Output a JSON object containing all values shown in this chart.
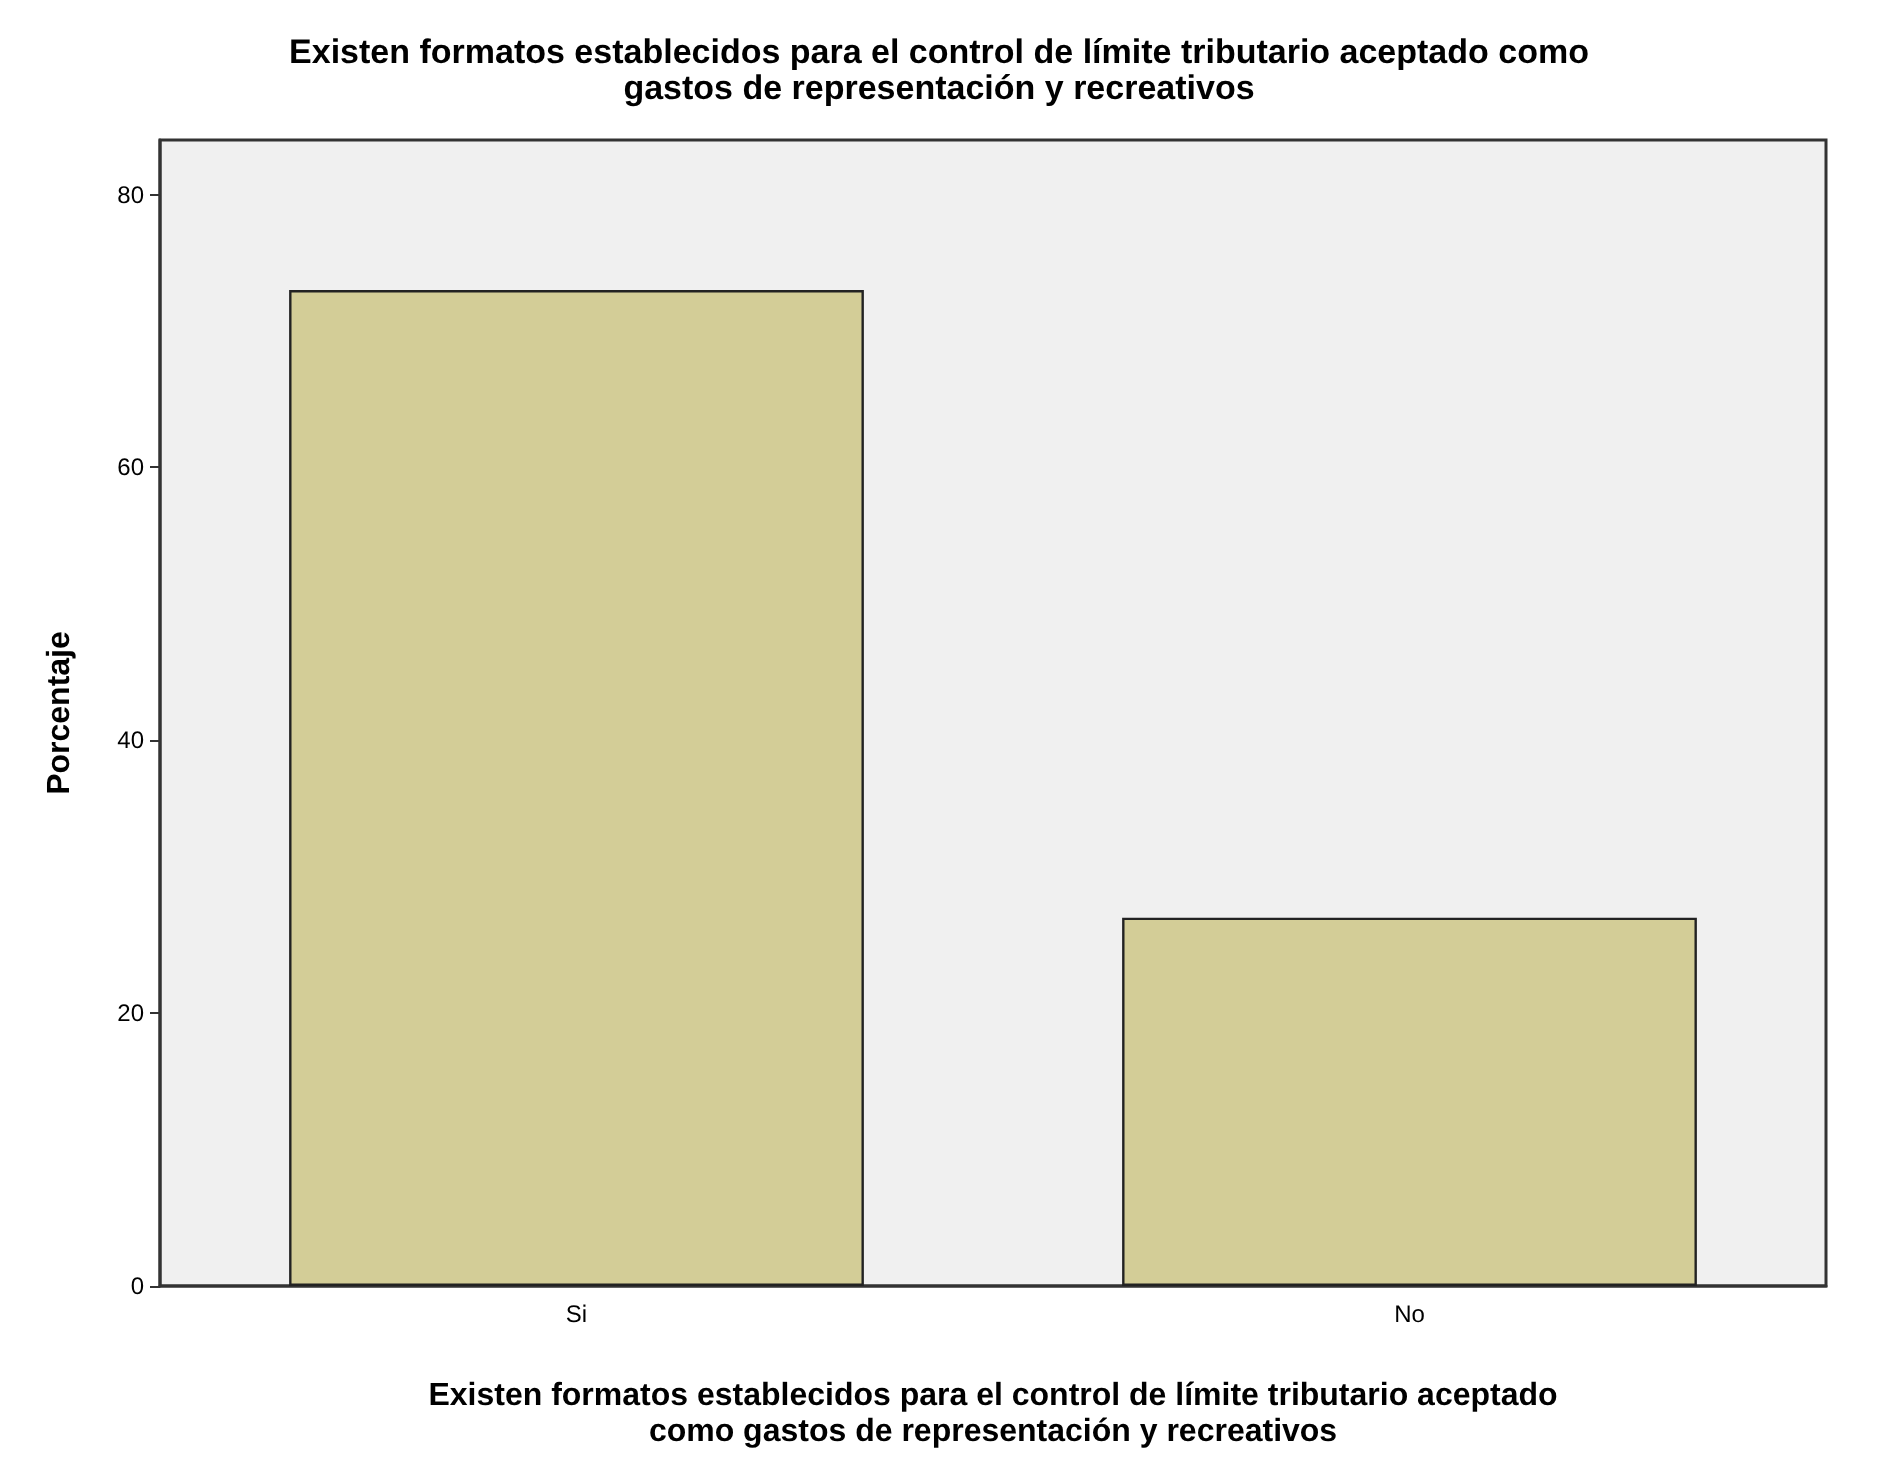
{
  "chart_data": {
    "type": "bar",
    "title": "Existen formatos establecidos para el control de límite tributario aceptado como\ngastos de representación y recreativos",
    "xlabel": "Existen formatos establecidos para el control de límite tributario aceptado\ncomo gastos de representación y recreativos",
    "ylabel": "Porcentaje",
    "categories": [
      "Si",
      "No"
    ],
    "values": [
      73,
      27
    ],
    "color": "#d3cd97",
    "ylim": [
      0,
      84
    ],
    "yticks": [
      0,
      20,
      40,
      60,
      80
    ],
    "grid": false
  }
}
